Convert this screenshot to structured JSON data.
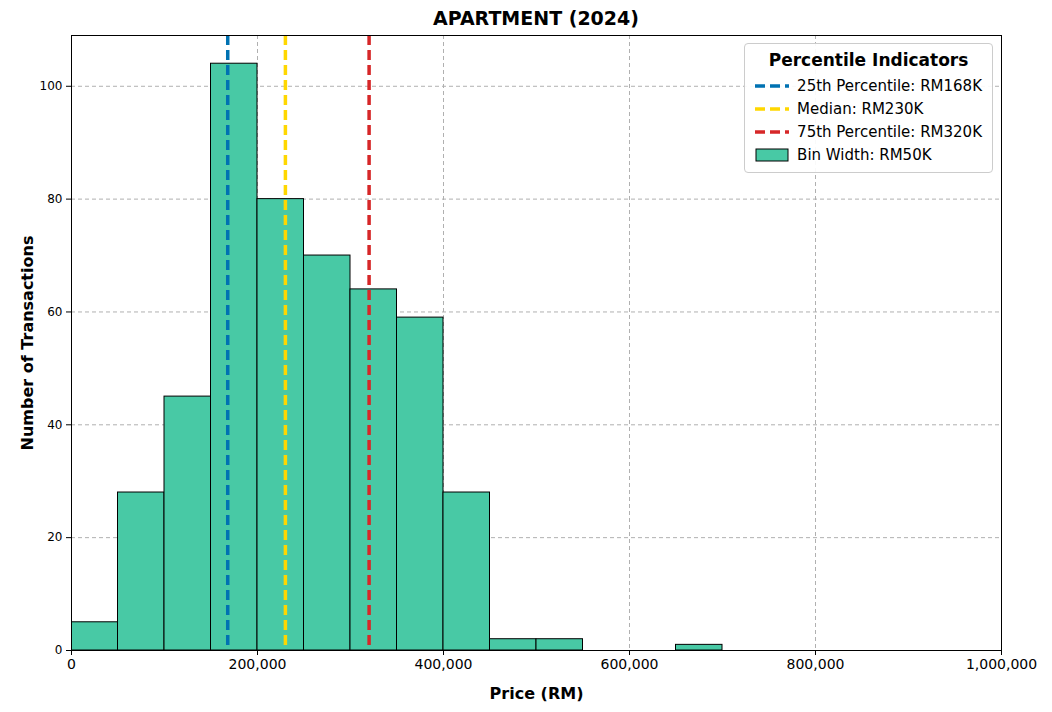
{
  "chart_data": {
    "type": "histogram",
    "title": "APARTMENT (2024)",
    "x_label": "Price (RM)",
    "y_label": "Number of Transactions",
    "bins": [
      0,
      50000,
      100000,
      150000,
      200000,
      250000,
      300000,
      350000,
      400000,
      450000,
      500000,
      550000,
      600000,
      650000,
      700000
    ],
    "values": [
      5,
      28,
      45,
      104,
      80,
      70,
      64,
      59,
      28,
      2,
      2,
      0,
      0,
      1
    ],
    "name": "Bin Width: RM50K",
    "color": "#48c9a5",
    "lines": [
      {
        "name": "25th Percentile: RM168K",
        "value": 168000,
        "color": "#0072b2",
        "line_style": "dashed"
      },
      {
        "name": "Median: RM230K",
        "value": 230000,
        "color": "#ffd700",
        "line_style": "dashed"
      },
      {
        "name": "75th Percentile: RM320K",
        "value": 320000,
        "color": "#d62728",
        "line_style": "dashed"
      }
    ],
    "legend_title": "Percentile Indicators",
    "legend": "upper right",
    "xlim": [
      0,
      1000000
    ],
    "xticks": [
      {
        "value": 0,
        "label": "0"
      },
      {
        "value": 200000,
        "label": "200,000"
      },
      {
        "value": 400000,
        "label": "400,000"
      },
      {
        "value": 600000,
        "label": "600,000"
      },
      {
        "value": 800000,
        "label": "800,000"
      },
      {
        "value": 1000000,
        "label": "1,000,000"
      }
    ],
    "ylim": [
      0,
      109
    ],
    "yticks": [
      0,
      20,
      40,
      60,
      80,
      100
    ],
    "grid": true
  }
}
